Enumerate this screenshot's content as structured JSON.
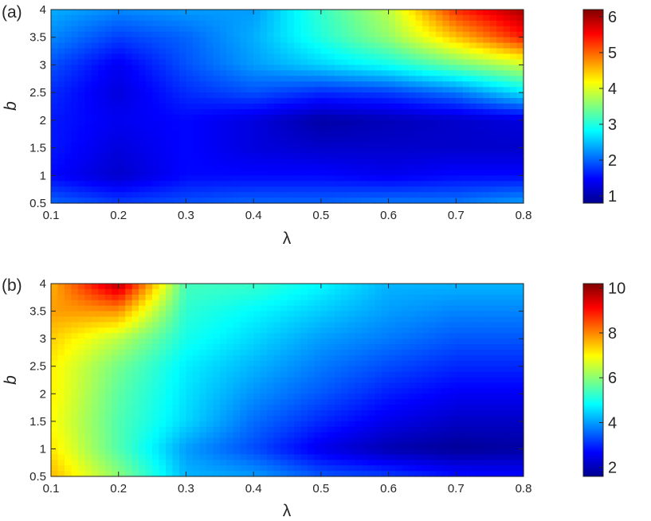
{
  "chart_data": [
    {
      "type": "heatmap",
      "panel_label": "(a)",
      "xlabel": "λ",
      "ylabel": "b",
      "xlim": [
        0.1,
        0.8
      ],
      "ylim": [
        0.5,
        4
      ],
      "x": [
        0.1,
        0.2,
        0.3,
        0.4,
        0.5,
        0.6,
        0.7,
        0.8
      ],
      "y": [
        0.5,
        1,
        1.5,
        2,
        2.5,
        3,
        3.5,
        4
      ],
      "x_ticks": [
        "0.1",
        "0.2",
        "0.3",
        "0.4",
        "0.5",
        "0.6",
        "0.7",
        "0.8"
      ],
      "y_ticks": [
        "0.5",
        "1",
        "1.5",
        "2",
        "2.5",
        "3",
        "3.5",
        "4"
      ],
      "z": [
        [
          2.0,
          1.8,
          1.9,
          2.0,
          2.0,
          2.1,
          2.1,
          2.3
        ],
        [
          1.5,
          1.2,
          1.5,
          1.5,
          1.5,
          1.4,
          1.5,
          1.5
        ],
        [
          1.6,
          1.3,
          1.5,
          1.3,
          1.2,
          1.2,
          1.2,
          1.2
        ],
        [
          1.6,
          1.4,
          1.5,
          1.3,
          1.0,
          1.1,
          1.2,
          1.3
        ],
        [
          1.7,
          1.3,
          1.7,
          1.9,
          1.7,
          1.8,
          2.1,
          2.7
        ],
        [
          1.9,
          1.4,
          1.9,
          2.3,
          2.6,
          2.9,
          3.4,
          3.9
        ],
        [
          2.2,
          1.8,
          2.0,
          2.4,
          3.0,
          3.6,
          4.5,
          5.4
        ],
        [
          2.4,
          2.2,
          2.3,
          2.3,
          3.1,
          3.8,
          5.3,
          6.0
        ]
      ],
      "colorbar": {
        "min": 0.8,
        "max": 6.2,
        "ticks": [
          1,
          2,
          3,
          4,
          5,
          6
        ]
      }
    },
    {
      "type": "heatmap",
      "panel_label": "(b)",
      "xlabel": "λ",
      "ylabel": "b",
      "xlim": [
        0.1,
        0.8
      ],
      "ylim": [
        0.5,
        4
      ],
      "x": [
        0.1,
        0.2,
        0.3,
        0.4,
        0.5,
        0.6,
        0.7,
        0.8
      ],
      "y": [
        0.5,
        1,
        1.5,
        2,
        2.5,
        3,
        3.5,
        4
      ],
      "x_ticks": [
        "0.1",
        "0.2",
        "0.3",
        "0.4",
        "0.5",
        "0.6",
        "0.7",
        "0.8"
      ],
      "y_ticks": [
        "0.5",
        "1",
        "1.5",
        "2",
        "2.5",
        "3",
        "3.5",
        "4"
      ],
      "z": [
        [
          7.6,
          6.0,
          4.2,
          4.0,
          3.4,
          3.2,
          2.8,
          2.7
        ],
        [
          7.2,
          5.5,
          4.0,
          3.3,
          2.5,
          2.0,
          1.8,
          1.9
        ],
        [
          7.0,
          5.5,
          4.5,
          3.6,
          3.0,
          2.5,
          2.2,
          2.2
        ],
        [
          7.1,
          5.6,
          4.6,
          3.9,
          3.4,
          2.9,
          2.6,
          2.6
        ],
        [
          7.1,
          5.8,
          4.7,
          4.2,
          3.7,
          3.3,
          3.0,
          3.0
        ],
        [
          7.4,
          6.4,
          5.0,
          4.5,
          4.0,
          3.7,
          3.4,
          3.4
        ],
        [
          7.8,
          7.9,
          5.2,
          4.8,
          4.4,
          4.0,
          3.8,
          3.8
        ],
        [
          7.6,
          9.8,
          5.4,
          5.3,
          4.8,
          4.2,
          4.2,
          4.2
        ]
      ],
      "colorbar": {
        "min": 1.6,
        "max": 10.2,
        "ticks": [
          2,
          4,
          6,
          8,
          10
        ]
      }
    }
  ]
}
